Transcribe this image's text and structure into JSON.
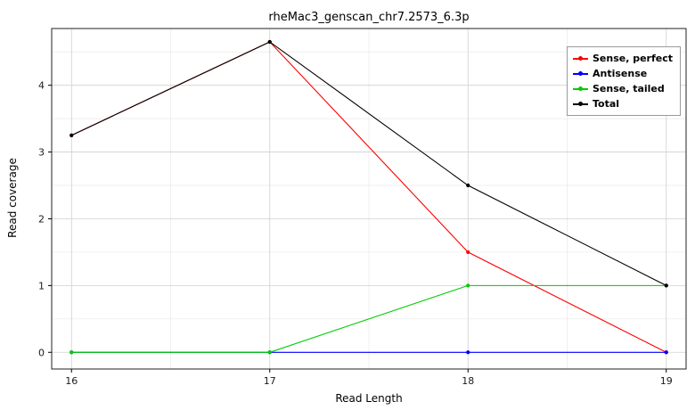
{
  "chart_data": {
    "type": "line",
    "title": "rheMac3_genscan_chr7.2573_6.3p",
    "xlabel": "Read Length",
    "ylabel": "Read coverage",
    "x": [
      16,
      17,
      18,
      19
    ],
    "x_ticks": [
      "16",
      "17",
      "18",
      "19"
    ],
    "y_ticks": [
      "0",
      "1",
      "2",
      "3",
      "4"
    ],
    "x_tick_values": [
      16,
      17,
      18,
      19
    ],
    "y_tick_values": [
      0,
      1,
      2,
      3,
      4
    ],
    "xlim": [
      15.9,
      19.1
    ],
    "ylim": [
      -0.25,
      4.85
    ],
    "grid": true,
    "legend_position": "top-right",
    "series": [
      {
        "name": "Sense, perfect",
        "color": "#ff0000",
        "values": [
          3.25,
          4.65,
          1.5,
          0
        ]
      },
      {
        "name": "Antisense",
        "color": "#0000ff",
        "values": [
          0,
          0,
          0,
          0
        ]
      },
      {
        "name": "Sense, tailed",
        "color": "#00cc00",
        "values": [
          0,
          0,
          1,
          1
        ]
      },
      {
        "name": "Total",
        "color": "#000000",
        "values": [
          3.25,
          4.65,
          2.5,
          1
        ]
      }
    ],
    "colors": {
      "panel_background": "#ffffff",
      "grid_major": "#d0d0d0",
      "grid_minor": "#e9e9e9",
      "panel_border": "#222222"
    }
  }
}
